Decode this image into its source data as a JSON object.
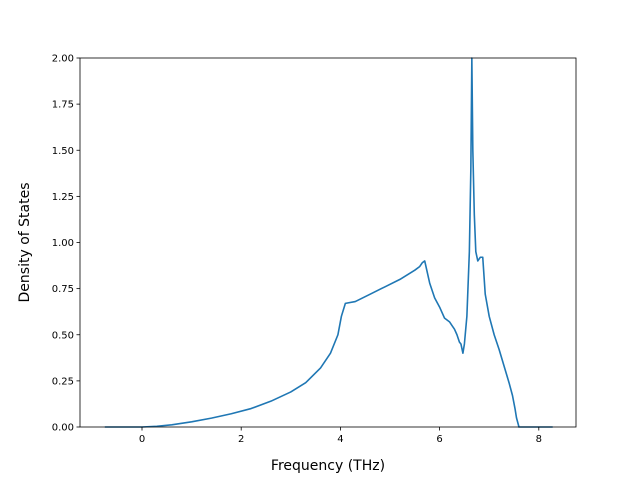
{
  "chart_data": {
    "type": "line",
    "title": "",
    "xlabel": "Frequency (THz)",
    "ylabel": "Density of States",
    "xlim": [
      -1.25,
      8.75
    ],
    "ylim": [
      0.0,
      2.0
    ],
    "xticks": [
      0,
      2,
      4,
      6,
      8
    ],
    "xtick_labels": [
      "0",
      "2",
      "4",
      "6",
      "8"
    ],
    "yticks": [
      0.0,
      0.25,
      0.5,
      0.75,
      1.0,
      1.25,
      1.5,
      1.75,
      2.0
    ],
    "ytick_labels": [
      "0.00",
      "0.25",
      "0.50",
      "0.75",
      "1.00",
      "1.25",
      "1.50",
      "1.75",
      "2.00"
    ],
    "grid": false,
    "legend": "none",
    "line_color": "#1f77b4",
    "series": [
      {
        "x": [
          -0.75,
          -0.4,
          0.0,
          0.3,
          0.6,
          1.0,
          1.4,
          1.8,
          2.2,
          2.6,
          3.0,
          3.3,
          3.6,
          3.8,
          3.95,
          4.02,
          4.1,
          4.3,
          4.6,
          4.9,
          5.2,
          5.5,
          5.6,
          5.65,
          5.7,
          5.8,
          5.9,
          6.0,
          6.1,
          6.2,
          6.25,
          6.3,
          6.35,
          6.4,
          6.43,
          6.47,
          6.5,
          6.55,
          6.6,
          6.63,
          6.65,
          6.67,
          6.7,
          6.73,
          6.77,
          6.82,
          6.87,
          6.92,
          7.0,
          7.1,
          7.2,
          7.3,
          7.4,
          7.47,
          7.52,
          7.55,
          7.6,
          8.0,
          8.28
        ],
        "y": [
          0.0,
          0.0,
          0.0,
          0.004,
          0.012,
          0.028,
          0.048,
          0.072,
          0.1,
          0.14,
          0.19,
          0.24,
          0.32,
          0.4,
          0.5,
          0.6,
          0.67,
          0.68,
          0.72,
          0.76,
          0.8,
          0.85,
          0.87,
          0.89,
          0.9,
          0.78,
          0.7,
          0.65,
          0.59,
          0.57,
          0.55,
          0.53,
          0.5,
          0.46,
          0.45,
          0.4,
          0.45,
          0.6,
          0.95,
          1.4,
          2.0,
          1.5,
          1.15,
          0.95,
          0.9,
          0.92,
          0.92,
          0.72,
          0.6,
          0.5,
          0.42,
          0.33,
          0.24,
          0.17,
          0.1,
          0.05,
          0.0,
          0.0,
          0.0
        ]
      }
    ]
  }
}
